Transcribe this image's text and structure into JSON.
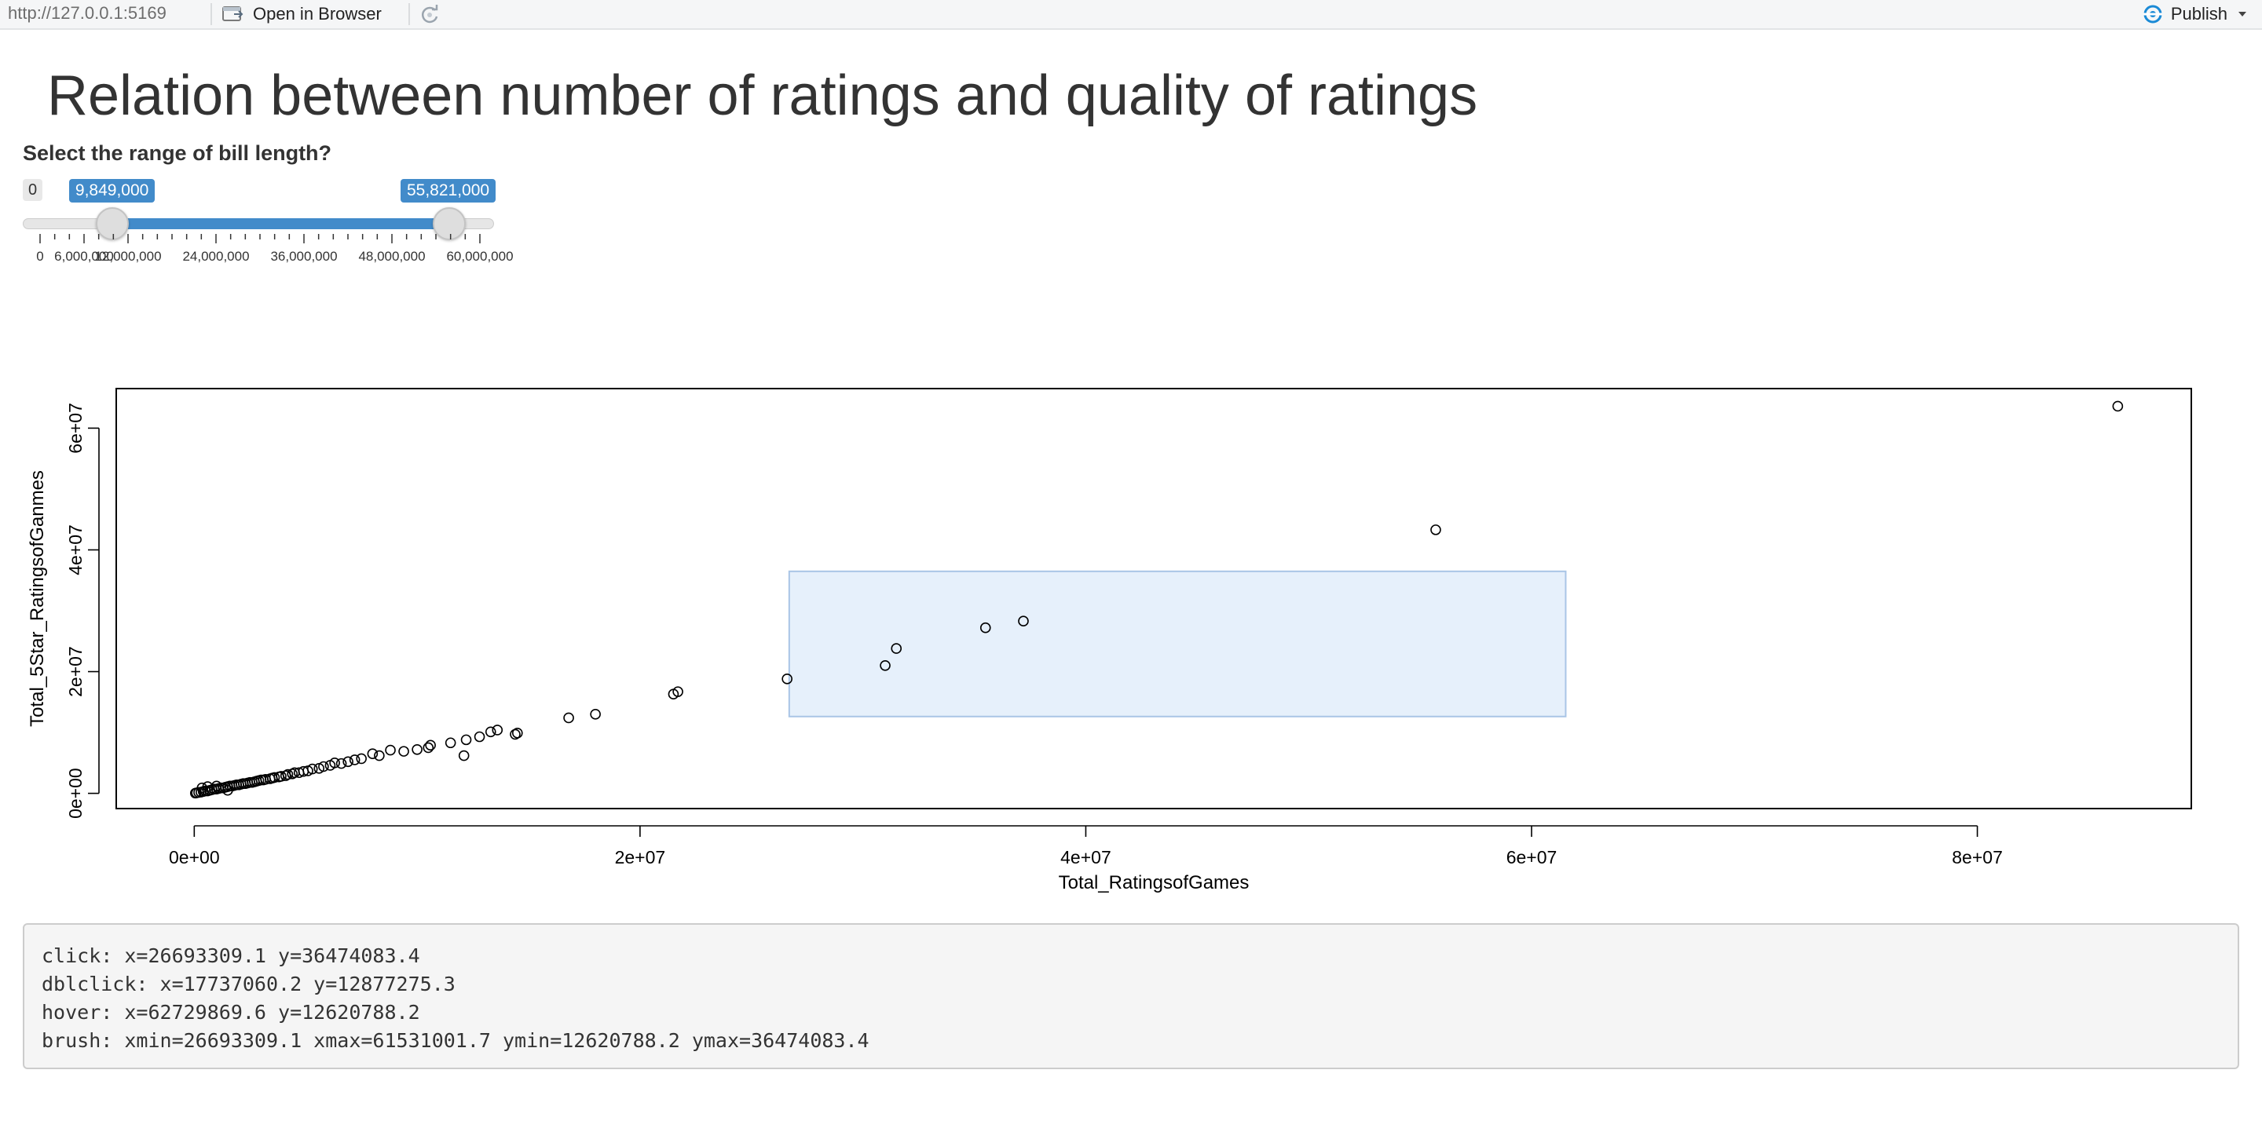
{
  "toolbar": {
    "url": "http://127.0.0.1:5169",
    "open_in_browser_label": "Open in Browser",
    "publish_label": "Publish",
    "accent": "#1a8ad6"
  },
  "title": "Relation between number of ratings and quality of ratings",
  "slider": {
    "label": "Select the range of bill length?",
    "min_label": "0",
    "min": 0,
    "max": 60000000,
    "from": 9849000,
    "to": 55821000,
    "from_label": "9,849,000",
    "to_label": "55,821,000",
    "tick_labels": [
      "0",
      "6,000,000",
      "12,000,000",
      "24,000,000",
      "36,000,000",
      "48,000,000",
      "60,000,000"
    ],
    "accent": "#428bca"
  },
  "chart_data": {
    "type": "scatter",
    "xlabel": "Total_RatingsofGames",
    "ylabel": "Total_5Star_RatingsofGanmes",
    "x_ticks": [
      "0e+00",
      "2e+07",
      "4e+07",
      "6e+07",
      "8e+07"
    ],
    "y_ticks": [
      "0e+00",
      "2e+07",
      "4e+07",
      "6e+07"
    ],
    "xlim": [
      -3500000,
      89600000
    ],
    "ylim": [
      -2500000,
      66500000
    ],
    "points": [
      [
        86300000,
        63600000
      ],
      [
        55700000,
        43300000
      ],
      [
        37200000,
        28300000
      ],
      [
        35500000,
        27200000
      ],
      [
        31500000,
        23800000
      ],
      [
        31000000,
        21000000
      ],
      [
        26600000,
        18800000
      ],
      [
        21700000,
        16700000
      ],
      [
        21500000,
        16300000
      ],
      [
        18000000,
        13000000
      ],
      [
        16800000,
        12400000
      ],
      [
        14500000,
        9900000
      ],
      [
        14400000,
        9700000
      ],
      [
        13600000,
        10400000
      ],
      [
        13300000,
        10100000
      ],
      [
        12800000,
        9300000
      ],
      [
        12200000,
        8800000
      ],
      [
        12100000,
        6200000
      ],
      [
        11500000,
        8300000
      ],
      [
        10600000,
        7900000
      ],
      [
        10500000,
        7500000
      ],
      [
        10000000,
        7200000
      ],
      [
        9400000,
        6900000
      ],
      [
        8800000,
        7100000
      ],
      [
        8300000,
        6200000
      ],
      [
        8000000,
        6500000
      ],
      [
        7500000,
        5700000
      ],
      [
        7200000,
        5500000
      ],
      [
        6900000,
        5200000
      ],
      [
        6600000,
        4900000
      ],
      [
        6300000,
        5000000
      ],
      [
        6100000,
        4600000
      ],
      [
        5800000,
        4400000
      ],
      [
        5600000,
        4100000
      ],
      [
        5300000,
        4000000
      ],
      [
        5100000,
        3700000
      ],
      [
        4900000,
        3600000
      ],
      [
        4700000,
        3400000
      ],
      [
        4500000,
        3400000
      ],
      [
        4400000,
        3200000
      ],
      [
        4200000,
        3100000
      ],
      [
        4100000,
        2900000
      ],
      [
        3900000,
        2800000
      ],
      [
        3800000,
        2700000
      ],
      [
        3600000,
        2600000
      ],
      [
        3500000,
        2500000
      ],
      [
        3400000,
        2400000
      ],
      [
        3200000,
        2300000
      ],
      [
        3100000,
        2200000
      ],
      [
        3000000,
        2200000
      ],
      [
        2900000,
        2100000
      ],
      [
        2800000,
        2000000
      ],
      [
        2700000,
        1900000
      ],
      [
        2600000,
        1800000
      ],
      [
        2500000,
        1800000
      ],
      [
        2400000,
        1700000
      ],
      [
        2300000,
        1600000
      ],
      [
        2200000,
        1600000
      ],
      [
        2100000,
        1500000
      ],
      [
        2000000,
        1400000
      ],
      [
        1900000,
        1400000
      ],
      [
        1800000,
        1300000
      ],
      [
        1700000,
        1200000
      ],
      [
        1600000,
        1200000
      ],
      [
        1500000,
        1100000
      ],
      [
        1400000,
        1000000
      ],
      [
        1300000,
        900000
      ],
      [
        1200000,
        900000
      ],
      [
        1100000,
        800000
      ],
      [
        1000000,
        700000
      ],
      [
        900000,
        700000
      ],
      [
        800000,
        600000
      ],
      [
        700000,
        500000
      ],
      [
        600000,
        400000
      ],
      [
        500000,
        400000
      ],
      [
        400000,
        300000
      ],
      [
        300000,
        200000
      ],
      [
        200000,
        150000
      ],
      [
        100000,
        80000
      ],
      [
        50000,
        30000
      ],
      [
        1500000,
        500000
      ],
      [
        600000,
        1100000
      ],
      [
        1000000,
        1200000
      ],
      [
        350000,
        900000
      ]
    ],
    "brush": {
      "xmin": 26693309.1,
      "xmax": 61531001.7,
      "ymin": 12620788.2,
      "ymax": 36474083.4
    },
    "grid": false,
    "brush_fill": "#e6f0fb",
    "brush_stroke": "#a9c5e6"
  },
  "output": {
    "click": "click: x=26693309.1 y=36474083.4",
    "dblclick": "dblclick: x=17737060.2 y=12877275.3",
    "hover": "hover: x=62729869.6 y=12620788.2",
    "brush": "brush: xmin=26693309.1 xmax=61531001.7 ymin=12620788.2 ymax=36474083.4"
  }
}
